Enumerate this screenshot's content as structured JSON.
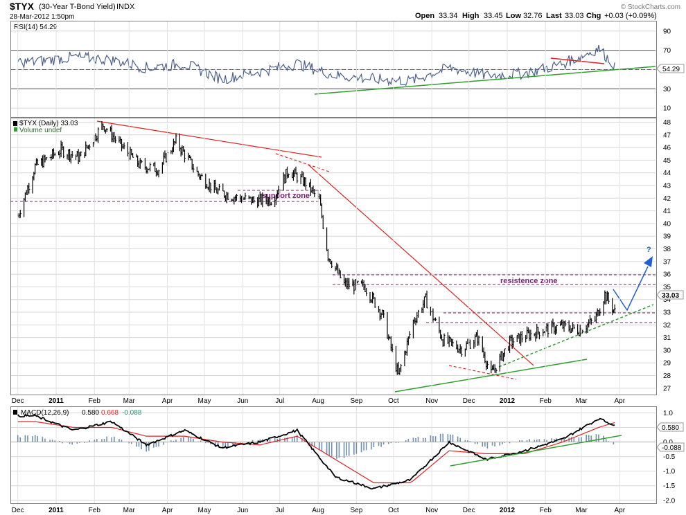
{
  "header": {
    "symbol": "$TYX",
    "name": "(30-Year T-Bond Yield)",
    "exchange": "INDX",
    "date": "28-Mar-2012 1:50pm",
    "open_label": "Open",
    "open": "33.34",
    "high_label": "High",
    "high": "33.45",
    "low_label": "Low",
    "low": "32.76",
    "last_label": "Last",
    "last": "33.03",
    "chg_label": "Chg",
    "chg": "+0.03 (+0.09%)",
    "watermark": "© StockCharts.com"
  },
  "rsi": {
    "label": "RSI(14) 54.29",
    "value_tag": "54.29",
    "ticks": [
      "90",
      "70",
      "50",
      "30",
      "10"
    ]
  },
  "price": {
    "legend": "$TYX (Daily) 33.03",
    "volume_legend": "Volume undef",
    "last_tag": "33.03",
    "ticks": [
      "48",
      "47",
      "46",
      "45",
      "44",
      "43",
      "42",
      "41",
      "40",
      "39",
      "38",
      "37",
      "36",
      "35",
      "34",
      "33",
      "32",
      "31",
      "30",
      "29",
      "28",
      "27"
    ]
  },
  "annotations": {
    "support": "support zone",
    "resistance": "resistence zone",
    "question": "?"
  },
  "macd": {
    "label_prefix": "MACD(12,26,9)",
    "macd_value": "0.580",
    "signal_value": "0.668",
    "hist_value": "-0.088",
    "tag_macd": "0.580",
    "tag_hist": "-0.088",
    "ticks": [
      "1.0",
      "0.5",
      "0.0",
      "-0.5",
      "-1.0",
      "-1.5",
      "-2.0"
    ]
  },
  "xaxis_labels": [
    "Dec",
    "2011",
    "Feb",
    "Mar",
    "Apr",
    "May",
    "Jun",
    "Jul",
    "Aug",
    "Sep",
    "Oct",
    "Nov",
    "Dec",
    "2012",
    "Feb",
    "Mar",
    "Apr"
  ],
  "colors": {
    "price_bars": "#000000",
    "rsi_line": "#4a5f8c",
    "trend_green": "#2e9e2e",
    "trend_red": "#e02020",
    "zone_purple": "#7a1f6e",
    "forecast_blue": "#1e5fd6",
    "macd_line": "#000000",
    "signal_line": "#e02020",
    "histogram": "#6f8fb0"
  },
  "chart_data": [
    {
      "type": "line",
      "title": "RSI(14)",
      "ylim": [
        0,
        100
      ],
      "reference_levels": [
        70,
        30
      ],
      "last_value": 54.29,
      "x": [
        "2010-12",
        "2011-01",
        "2011-02",
        "2011-03",
        "2011-04",
        "2011-05",
        "2011-06",
        "2011-07",
        "2011-08",
        "2011-09",
        "2011-10",
        "2011-11",
        "2011-12",
        "2012-01",
        "2012-02",
        "2012-03",
        "2012-03-28"
      ],
      "series": [
        {
          "values": [
            58,
            63,
            60,
            52,
            56,
            40,
            48,
            56,
            44,
            40,
            38,
            52,
            44,
            46,
            56,
            72,
            54
          ]
        }
      ]
    },
    {
      "type": "line",
      "title": "$TYX (Daily) 33.03",
      "ylim": [
        26.5,
        48.3
      ],
      "x": [
        "2010-12-01",
        "2010-12-15",
        "2011-01-05",
        "2011-01-20",
        "2011-02-08",
        "2011-02-22",
        "2011-03-10",
        "2011-03-25",
        "2011-04-08",
        "2011-04-25",
        "2011-05-10",
        "2011-05-25",
        "2011-06-10",
        "2011-06-25",
        "2011-07-08",
        "2011-07-22",
        "2011-08-02",
        "2011-08-09",
        "2011-08-22",
        "2011-09-08",
        "2011-09-22",
        "2011-10-05",
        "2011-10-17",
        "2011-10-27",
        "2011-11-10",
        "2011-11-25",
        "2011-12-08",
        "2011-12-19",
        "2012-01-03",
        "2012-01-15",
        "2012-01-30",
        "2012-02-14",
        "2012-02-28",
        "2012-03-12",
        "2012-03-20",
        "2012-03-28"
      ],
      "series": [
        {
          "name": "$TYX",
          "values": [
            40.6,
            44.5,
            45.8,
            45.2,
            47.8,
            46.2,
            44.6,
            44.3,
            46.5,
            44.0,
            42.6,
            42.1,
            41.8,
            41.9,
            44.2,
            43.2,
            41.8,
            37.5,
            35.2,
            35.0,
            32.8,
            28.0,
            32.3,
            34.0,
            30.8,
            30.1,
            31.0,
            28.1,
            30.6,
            31.1,
            31.6,
            31.9,
            31.6,
            32.4,
            34.4,
            33.03
          ]
        }
      ],
      "support_zone": 40.6,
      "resistance_zone": [
        33.8,
        34.6
      ],
      "levels": [
        31.8,
        31.2
      ]
    },
    {
      "type": "line",
      "title": "MACD(12,26,9)",
      "ylim": [
        -2.1,
        1.2
      ],
      "x": [
        "2010-12",
        "2011-01",
        "2011-02",
        "2011-03",
        "2011-04",
        "2011-05",
        "2011-06",
        "2011-07",
        "2011-08",
        "2011-09",
        "2011-10",
        "2011-11",
        "2011-12",
        "2012-01",
        "2012-02",
        "2012-03",
        "2012-03-28"
      ],
      "series": [
        {
          "name": "MACD",
          "values": [
            0.9,
            0.4,
            0.7,
            -0.1,
            0.4,
            -0.2,
            0.0,
            0.4,
            -1.2,
            -1.6,
            -1.3,
            0.0,
            -0.6,
            -0.3,
            0.1,
            0.8,
            0.58
          ]
        },
        {
          "name": "Signal",
          "values": [
            0.7,
            0.5,
            0.5,
            0.2,
            0.2,
            0.0,
            -0.1,
            0.2,
            -0.6,
            -1.4,
            -1.4,
            -0.3,
            -0.4,
            -0.4,
            0.0,
            0.5,
            0.668
          ]
        },
        {
          "name": "Histogram",
          "values": [
            0.2,
            -0.1,
            0.2,
            -0.3,
            0.2,
            -0.2,
            0.1,
            0.2,
            -0.6,
            -0.2,
            0.1,
            0.3,
            -0.2,
            0.1,
            0.1,
            0.3,
            -0.088
          ]
        }
      ]
    }
  ]
}
